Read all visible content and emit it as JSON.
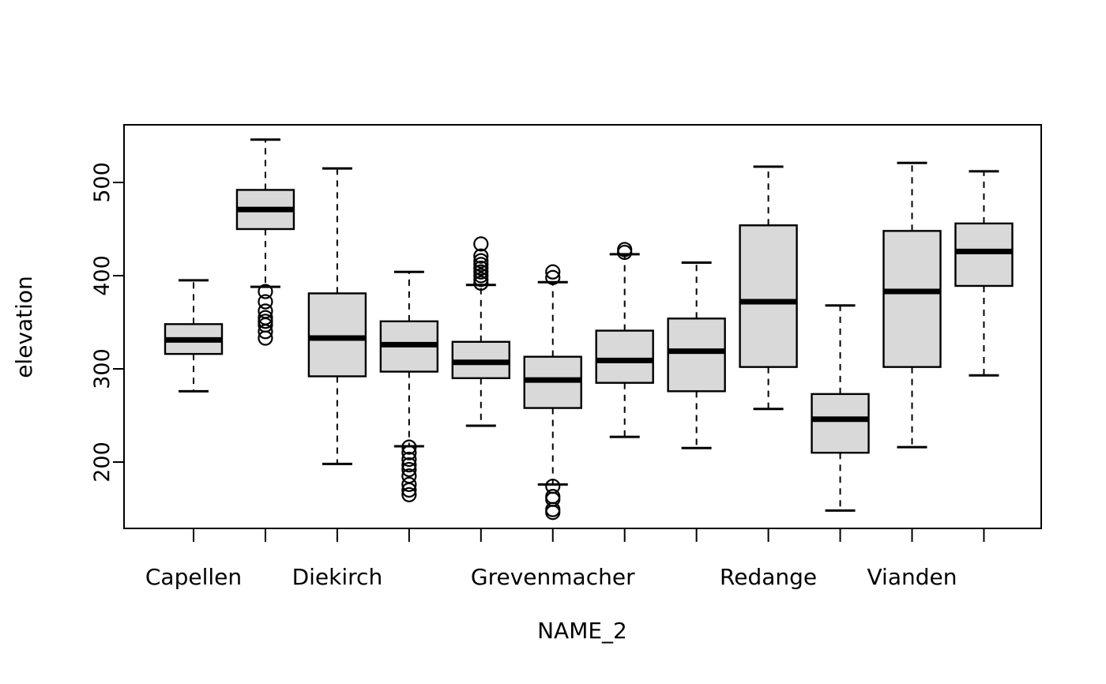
{
  "chart_data": {
    "type": "boxplot",
    "title": "",
    "xlabel": "NAME_2",
    "ylabel": "elevation",
    "y_axis": {
      "ticks": [
        200,
        300,
        400,
        500
      ],
      "range_shown": [
        128,
        562
      ]
    },
    "x_axis": {
      "n_positions": 12,
      "visible_labels": [
        {
          "label": "Capellen",
          "box_index": 1
        },
        {
          "label": "Diekirch",
          "box_index": 3
        },
        {
          "label": "Grevenmacher",
          "box_index": 6
        },
        {
          "label": "Redange",
          "box_index": 9
        },
        {
          "label": "Vianden",
          "box_index": 11
        }
      ]
    },
    "boxes": [
      {
        "whisker_low": 276,
        "q1": 316,
        "median": 331,
        "q3": 348,
        "whisker_high": 395,
        "outliers": []
      },
      {
        "whisker_low": 388,
        "q1": 450,
        "median": 471,
        "q3": 492,
        "whisker_high": 546,
        "outliers": [
          383,
          372,
          362,
          355,
          351,
          347,
          340,
          333
        ]
      },
      {
        "whisker_low": 198,
        "q1": 292,
        "median": 333,
        "q3": 381,
        "whisker_high": 515,
        "outliers": []
      },
      {
        "whisker_low": 217,
        "q1": 297,
        "median": 326,
        "q3": 351,
        "whisker_high": 404,
        "outliers": [
          216,
          210,
          203,
          197,
          192,
          185,
          176,
          170,
          165
        ]
      },
      {
        "whisker_low": 239,
        "q1": 290,
        "median": 307,
        "q3": 329,
        "whisker_high": 390,
        "outliers": [
          434,
          421,
          416,
          412,
          408,
          404,
          400,
          396,
          392
        ]
      },
      {
        "whisker_low": 176,
        "q1": 258,
        "median": 288,
        "q3": 313,
        "whisker_high": 393,
        "outliers": [
          404,
          398,
          174,
          163,
          160,
          149,
          146
        ]
      },
      {
        "whisker_low": 227,
        "q1": 285,
        "median": 309,
        "q3": 341,
        "whisker_high": 423,
        "outliers": [
          428,
          425
        ]
      },
      {
        "whisker_low": 215,
        "q1": 276,
        "median": 319,
        "q3": 354,
        "whisker_high": 414,
        "outliers": []
      },
      {
        "whisker_low": 257,
        "q1": 302,
        "median": 372,
        "q3": 454,
        "whisker_high": 517,
        "outliers": []
      },
      {
        "whisker_low": 148,
        "q1": 210,
        "median": 246,
        "q3": 273,
        "whisker_high": 368,
        "outliers": []
      },
      {
        "whisker_low": 216,
        "q1": 302,
        "median": 383,
        "q3": 448,
        "whisker_high": 521,
        "outliers": []
      },
      {
        "whisker_low": 293,
        "q1": 389,
        "median": 426,
        "q3": 456,
        "whisker_high": 512,
        "outliers": []
      }
    ],
    "legend": null,
    "grid": false,
    "colors": {
      "background": "#ffffff",
      "box_fill": "#d9d9d9",
      "line": "#000000",
      "text": "#000000"
    }
  }
}
